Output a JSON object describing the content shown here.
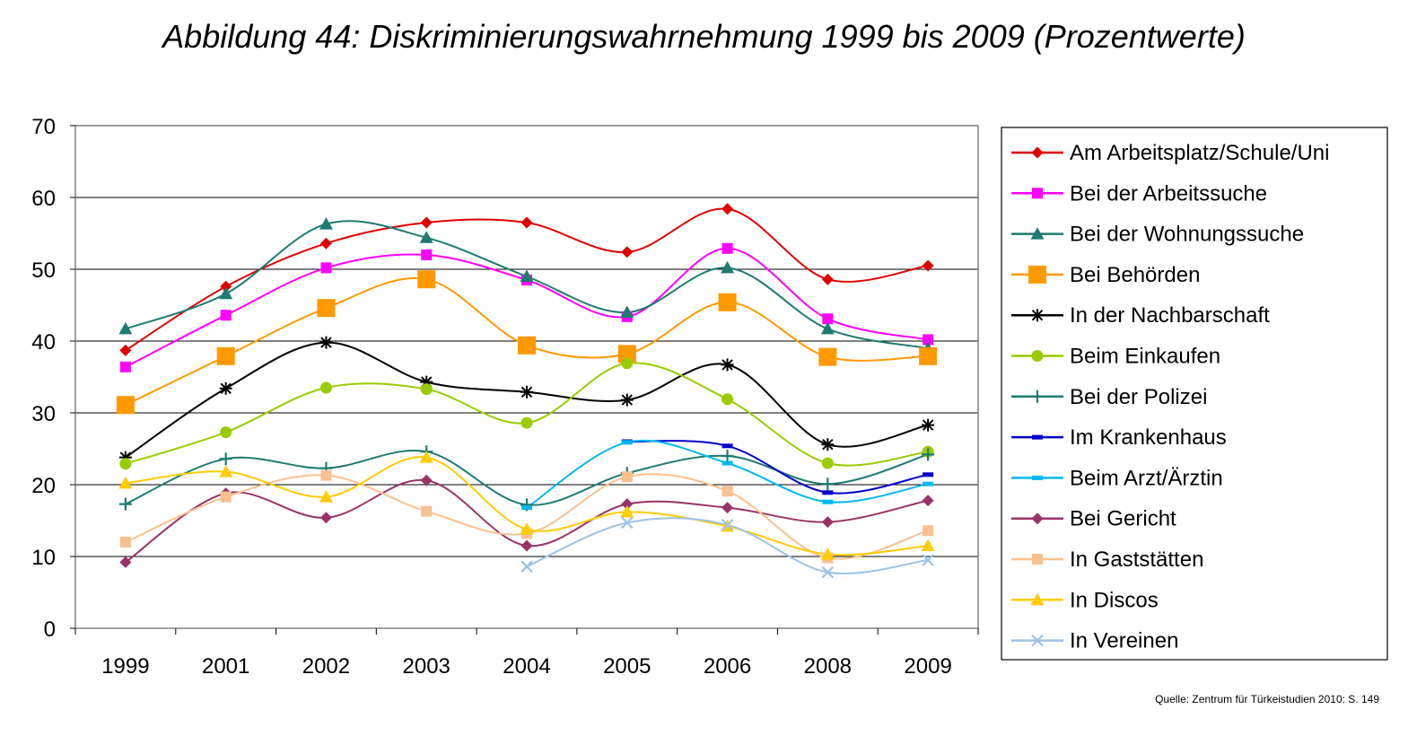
{
  "title": "Abbildung 44: Diskriminierungswahrnehmung 1999 bis 2009 (Prozentwerte)",
  "source": "Quelle: Zentrum für Türkeistudien 2010: S. 149",
  "chart_data": {
    "type": "line",
    "title": "Abbildung 44: Diskriminierungswahrnehmung 1999 bis 2009 (Prozentwerte)",
    "xlabel": "",
    "ylabel": "",
    "categories": [
      "1999",
      "2001",
      "2002",
      "2003",
      "2004",
      "2005",
      "2006",
      "2008",
      "2009"
    ],
    "ylim": [
      0,
      70
    ],
    "yticks": [
      "0",
      "10",
      "20",
      "30",
      "40",
      "50",
      "60",
      "70"
    ],
    "grid": true,
    "legend": "right",
    "series": [
      {
        "name": "Am Arbeitsplatz/Schule/Uni",
        "color": "#e00000",
        "marker": "diamond",
        "values": [
          38.7,
          47.6,
          53.6,
          56.5,
          56.5,
          52.4,
          58.4,
          48.6,
          50.5
        ]
      },
      {
        "name": "Bei der Arbeitssuche",
        "color": "#ff00ff",
        "marker": "square",
        "values": [
          36.4,
          43.6,
          50.2,
          52.0,
          48.5,
          43.4,
          52.9,
          43.1,
          40.2
        ]
      },
      {
        "name": "Bei der Wohnungssuche",
        "color": "#1e7b70",
        "marker": "triangle",
        "values": [
          41.7,
          46.6,
          56.3,
          54.4,
          49.0,
          44.0,
          50.2,
          41.7,
          39.0
        ]
      },
      {
        "name": "Bei Behörden",
        "color": "#ff9900",
        "marker": "bigsquare",
        "values": [
          31.1,
          37.9,
          44.6,
          48.6,
          39.4,
          38.2,
          45.4,
          37.8,
          37.9
        ]
      },
      {
        "name": "In der Nachbarschaft",
        "color": "#000000",
        "marker": "star",
        "values": [
          23.8,
          33.4,
          39.8,
          34.3,
          32.9,
          31.8,
          36.7,
          25.6,
          28.3
        ]
      },
      {
        "name": "Beim Einkaufen",
        "color": "#99cc00",
        "marker": "circle",
        "values": [
          22.9,
          27.3,
          33.5,
          33.3,
          28.6,
          36.9,
          31.9,
          23.0,
          24.6
        ]
      },
      {
        "name": "Bei der Polizei",
        "color": "#1e7b70",
        "marker": "plus",
        "values": [
          17.3,
          23.6,
          22.3,
          24.6,
          17.2,
          21.6,
          24.0,
          20.1,
          24.2
        ]
      },
      {
        "name": "Im Krankenhaus",
        "color": "#0000cc",
        "marker": "dash",
        "values": [
          null,
          null,
          null,
          null,
          null,
          26.0,
          25.4,
          18.9,
          21.4
        ]
      },
      {
        "name": "Beim Arzt/Ärztin",
        "color": "#00b8f0",
        "marker": "dash",
        "values": [
          null,
          null,
          null,
          null,
          16.8,
          25.9,
          23.0,
          17.6,
          20.1
        ]
      },
      {
        "name": "Bei Gericht",
        "color": "#993366",
        "marker": "diamond",
        "values": [
          9.2,
          18.8,
          15.4,
          20.6,
          11.5,
          17.3,
          16.8,
          14.8,
          17.8
        ]
      },
      {
        "name": "In Gaststätten",
        "color": "#fac090",
        "marker": "square",
        "values": [
          12.0,
          18.3,
          21.3,
          16.3,
          13.2,
          21.1,
          19.1,
          9.8,
          13.6
        ]
      },
      {
        "name": "In Discos",
        "color": "#ffcc00",
        "marker": "triangle",
        "values": [
          20.2,
          21.8,
          18.3,
          23.8,
          13.8,
          16.2,
          14.2,
          10.3,
          11.5
        ]
      },
      {
        "name": "In Vereinen",
        "color": "#9dc3e6",
        "marker": "x",
        "values": [
          null,
          null,
          null,
          null,
          8.6,
          14.7,
          14.4,
          7.8,
          9.5
        ]
      }
    ]
  }
}
